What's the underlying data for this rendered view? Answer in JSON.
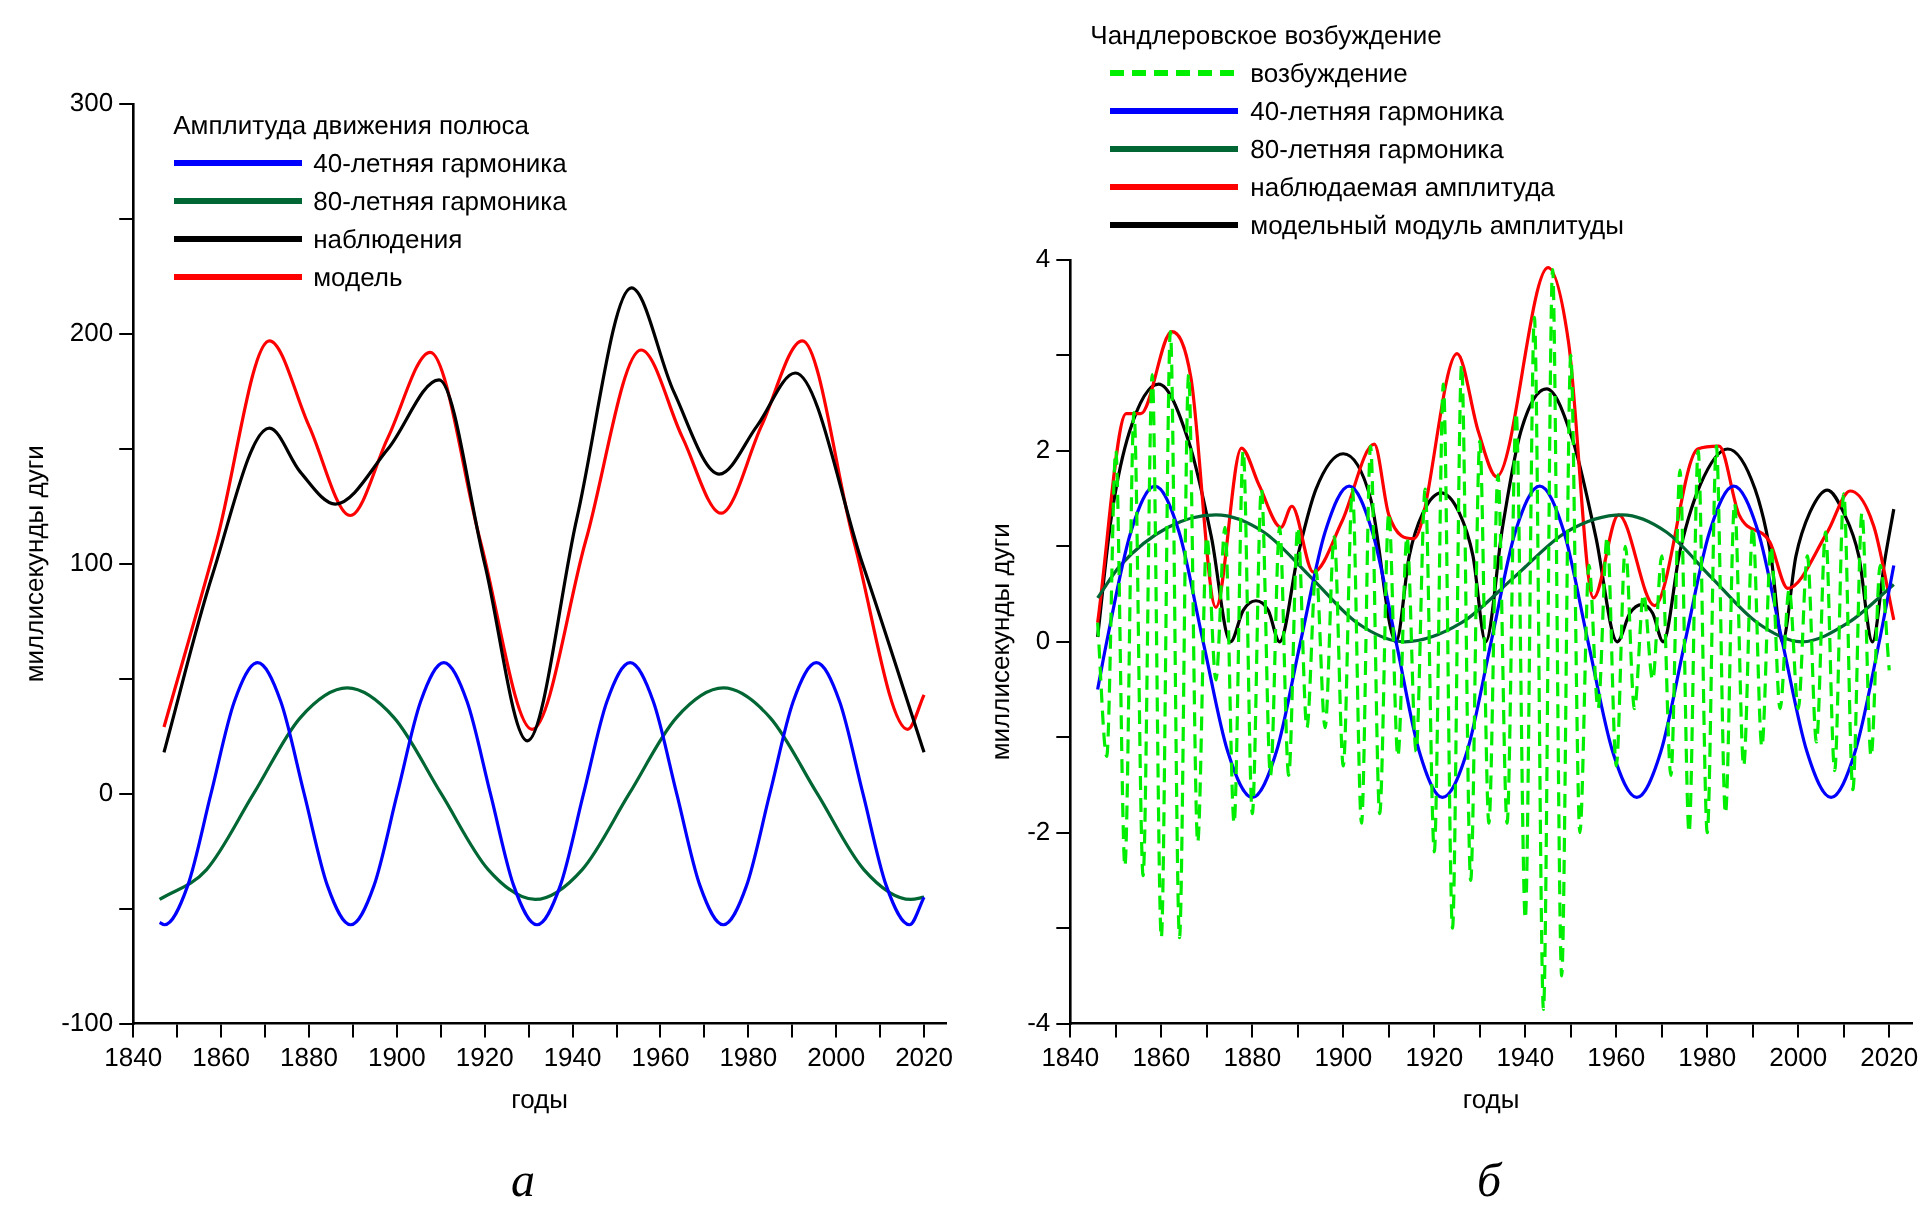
{
  "chart_data": [
    {
      "type": "line",
      "xlabel": "годы",
      "ylabel": "миллисекунды дуги",
      "legend_title": "Амплитуда движения полюса",
      "legend": "top left",
      "marker": "none",
      "annotations": [
        "а"
      ],
      "xlim": [
        1840,
        2025
      ],
      "xticks": [
        1840,
        {
          "value": 1850,
          "label": null
        },
        1860,
        {
          "value": 1870,
          "label": null
        },
        1880,
        {
          "value": 1890,
          "label": null
        },
        1900,
        {
          "value": 1910,
          "label": null
        },
        1920,
        {
          "value": 1930,
          "label": null
        },
        1940,
        {
          "value": 1950,
          "label": null
        },
        1960,
        {
          "value": 1970,
          "label": null
        },
        1980,
        {
          "value": 1990,
          "label": null
        },
        2000,
        {
          "value": 2010,
          "label": null
        },
        2020
      ],
      "ylim": [
        -100,
        300
      ],
      "yticks": [
        -100,
        {
          "value": -50,
          "label": null
        },
        0,
        {
          "value": 50,
          "label": null
        },
        100,
        {
          "value": 150,
          "label": null
        },
        200,
        {
          "value": 250,
          "label": null
        },
        300
      ],
      "series": [
        {
          "name": "40-летняя гармоника",
          "color": "#0000ff",
          "x": [
            1846,
            1847.1,
            1852.4,
            1857.7,
            1863,
            1868.3,
            1873.6,
            1878.9,
            1884.2,
            1889.5,
            1894.8,
            1900.1,
            1905.4,
            1910.7,
            1916,
            1921.3,
            1926.6,
            1931.9,
            1937.2,
            1942.5,
            1947.8,
            1953.1,
            1958.4,
            1963.7,
            1969,
            1974.3,
            1979.6,
            1984.9,
            1990.2,
            1995.5,
            2000.8,
            2006.1,
            2011.4,
            2016.7,
            2020
          ],
          "values": [
            -56,
            -57,
            -40,
            0,
            40,
            57,
            40,
            0,
            -40,
            -57,
            -40,
            0,
            40,
            57,
            40,
            0,
            -40,
            -57,
            -40,
            0,
            40,
            57,
            40,
            0,
            -40,
            -57,
            -40,
            0,
            40,
            57,
            40,
            0,
            -40,
            -57,
            -45
          ]
        },
        {
          "name": "80-летняя гармоника",
          "color": "#006633",
          "x": [
            1846,
            1856.7,
            1867.4,
            1878,
            1888.7,
            1899.4,
            1910.1,
            1920.8,
            1931.5,
            1942.2,
            1952.9,
            1963.6,
            1974.3,
            1985,
            1995.7,
            2006.3,
            2017,
            2020
          ],
          "values": [
            -46,
            -33,
            0,
            33,
            46,
            33,
            0,
            -33,
            -46,
            -33,
            0,
            33,
            46,
            33,
            0,
            -33,
            -46,
            -45
          ]
        },
        {
          "name": "наблюдения",
          "color": "#000000",
          "x": [
            1847,
            1858,
            1871,
            1878,
            1886,
            1898,
            1909.6,
            1920,
            1929.7,
            1941,
            1953.4,
            1963,
            1973.4,
            1982,
            1990.7,
            2006,
            2020
          ],
          "values": [
            18,
            95,
            159,
            140,
            126,
            150,
            180,
            100,
            23,
            120,
            220,
            175,
            139,
            160,
            183,
            100,
            18
          ]
        },
        {
          "name": "модель",
          "color": "#ff0000",
          "x": [
            1847,
            1859,
            1871,
            1880,
            1889.4,
            1898,
            1907.6,
            1919,
            1930.8,
            1943,
            1955.6,
            1965,
            1973.8,
            1983,
            1992.3,
            2004,
            2016.3,
            2020
          ],
          "values": [
            29,
            110,
            197,
            160,
            121,
            155,
            192,
            110,
            28,
            110,
            193,
            155,
            122,
            160,
            197,
            110,
            28,
            43
          ]
        }
      ]
    },
    {
      "type": "line",
      "xlabel": "годы",
      "ylabel": "миллисекунды дуги",
      "legend_title": "Чандлеровское возбуждение",
      "legend": "top",
      "marker": "none",
      "annotations": [
        "б"
      ],
      "xlim": [
        1840,
        2025
      ],
      "xticks": [
        1840,
        {
          "value": 1850,
          "label": null
        },
        1860,
        {
          "value": 1870,
          "label": null
        },
        1880,
        {
          "value": 1890,
          "label": null
        },
        1900,
        {
          "value": 1910,
          "label": null
        },
        1920,
        {
          "value": 1930,
          "label": null
        },
        1940,
        {
          "value": 1950,
          "label": null
        },
        1960,
        {
          "value": 1970,
          "label": null
        },
        1980,
        {
          "value": 1990,
          "label": null
        },
        2000,
        {
          "value": 2010,
          "label": null
        },
        2020
      ],
      "ylim": [
        -4,
        4
      ],
      "yticks": [
        -4,
        {
          "value": -3,
          "label": null
        },
        -2,
        {
          "value": -1,
          "label": null
        },
        0,
        {
          "value": 1,
          "label": null
        },
        2,
        {
          "value": 3,
          "label": null
        },
        4
      ],
      "series": [
        {
          "name": "возбуждение",
          "color": "#00ee00",
          "line_style": "dashed",
          "x": [
            1846,
            1848,
            1850,
            1852,
            1854,
            1856,
            1858,
            1860,
            1862,
            1864,
            1866,
            1868,
            1870,
            1872,
            1874,
            1876,
            1878,
            1880,
            1882,
            1884,
            1886,
            1888,
            1890,
            1892,
            1894,
            1896,
            1898,
            1900,
            1902,
            1904,
            1906,
            1908,
            1910,
            1912,
            1914,
            1916,
            1918,
            1920,
            1922,
            1924,
            1926,
            1928,
            1930,
            1932,
            1934,
            1936,
            1938,
            1940,
            1942,
            1944,
            1946,
            1948,
            1950,
            1952,
            1954,
            1956,
            1958,
            1960,
            1962,
            1964,
            1966,
            1968,
            1970,
            1972,
            1974,
            1976,
            1978,
            1980,
            1982,
            1984,
            1986,
            1988,
            1990,
            1992,
            1994,
            1996,
            1998,
            2000,
            2002,
            2004,
            2006,
            2008,
            2010,
            2012,
            2014,
            2016,
            2018,
            2020
          ],
          "values": [
            0.2,
            -1.2,
            2.0,
            -2.35,
            2.4,
            -2.45,
            2.8,
            -3.1,
            3.25,
            -3.1,
            2.8,
            -2.1,
            1.1,
            -0.4,
            1.2,
            -1.9,
            2.0,
            -1.8,
            1.6,
            -1.4,
            1.2,
            -1.4,
            1.2,
            -0.9,
            0.75,
            -0.9,
            1.1,
            -1.3,
            1.6,
            -1.9,
            2.05,
            -1.8,
            1.35,
            -1.2,
            1.1,
            -1.15,
            1.6,
            -2.2,
            2.7,
            -3.0,
            2.9,
            -2.5,
            2.1,
            -1.9,
            1.75,
            -1.9,
            2.4,
            -2.9,
            3.4,
            -3.85,
            3.9,
            -3.5,
            3.0,
            -2.0,
            0.8,
            -0.7,
            1.1,
            -1.3,
            1.0,
            -0.7,
            0.5,
            -0.4,
            0.9,
            -1.4,
            1.8,
            -2.0,
            2.0,
            -2.0,
            2.05,
            -1.8,
            1.45,
            -1.3,
            1.2,
            -1.1,
            1.0,
            -0.7,
            0.55,
            -0.7,
            0.9,
            -1.05,
            1.15,
            -1.35,
            1.55,
            -1.55,
            1.35,
            -1.2,
            0.8,
            -0.3
          ]
        },
        {
          "name": "40-летняя гармоника",
          "color": "#0000ff",
          "x": [
            1846,
            1848,
            1853.3,
            1858.6,
            1863.9,
            1869.2,
            1874.6,
            1880,
            1885.3,
            1890.6,
            1896,
            1901.3,
            1906.4,
            1911.6,
            1916.7,
            1921.8,
            1927.2,
            1932.5,
            1937.8,
            1943.2,
            1948.5,
            1953.8,
            1959.2,
            1964.5,
            1969.8,
            1975.1,
            1980.5,
            1985.8,
            1991.2,
            1996.5,
            2001.9,
            2007.2,
            2012.5,
            2017.8,
            2021
          ],
          "values": [
            -0.5,
            0,
            1.15,
            1.63,
            1.15,
            0,
            -1.15,
            -1.63,
            -1.15,
            0,
            1.15,
            1.63,
            1.15,
            0,
            -1.15,
            -1.63,
            -1.15,
            0,
            1.15,
            1.63,
            1.15,
            0,
            -1.15,
            -1.63,
            -1.15,
            0,
            1.15,
            1.63,
            1.15,
            0,
            -1.15,
            -1.63,
            -1.15,
            0,
            0.8
          ]
        },
        {
          "name": "80-летняя гармоника",
          "color": "#006633",
          "x": [
            1846,
            1851,
            1861.5,
            1872,
            1882.5,
            1893,
            1903,
            1913.5,
            1926,
            1937.4,
            1949,
            1961.3,
            1971,
            1981,
            1991,
            2000.8,
            2011,
            2021
          ],
          "values": [
            0.46,
            0.8,
            1.2,
            1.33,
            1.15,
            0.67,
            0.2,
            0,
            0.2,
            0.67,
            1.15,
            1.33,
            1.15,
            0.67,
            0.2,
            0,
            0.2,
            0.6
          ]
        },
        {
          "name": "наблюдаемая амплитуда",
          "color": "#ff0000",
          "x": [
            1846,
            1852.3,
            1855.5,
            1862.3,
            1866.5,
            1872,
            1877.6,
            1881.5,
            1886.3,
            1888.7,
            1893.4,
            1899.7,
            1906.8,
            1910,
            1915.5,
            1925,
            1929.7,
            1933.7,
            1945,
            1949.5,
            1955,
            1960.5,
            1968.4,
            1977.9,
            1982.6,
            1987,
            1993.7,
            1997.7,
            2006.4,
            2011.4,
            2016.6,
            2021
          ],
          "values": [
            0.2,
            2.39,
            2.39,
            3.25,
            2.77,
            0.36,
            2.03,
            1.64,
            1.2,
            1.42,
            0.73,
            1.26,
            2.07,
            1.33,
            1.08,
            3.02,
            2.2,
            1.73,
            3.92,
            3.14,
            0.46,
            1.33,
            0.38,
            2.02,
            2.05,
            1.33,
            1.05,
            0.56,
            1.15,
            1.58,
            1.21,
            0.23
          ]
        },
        {
          "name": "модельный модуль амплитуды",
          "color": "#000000",
          "x": [
            1846,
            1849,
            1853,
            1859.4,
            1866,
            1871,
            1875.2,
            1878,
            1880.8,
            1883.5,
            1886,
            1890,
            1894,
            1900,
            1906,
            1911.6,
            1914.5,
            1917.5,
            1921.5,
            1925.5,
            1928.5,
            1931.3,
            1935,
            1939,
            1944.7,
            1950.5,
            1955.5,
            1960.2,
            1963,
            1965.6,
            1968,
            1970.3,
            1974,
            1978.5,
            1984.5,
            1990.5,
            1994,
            1996.5,
            1999.5,
            2002.5,
            2006.4,
            2010,
            2013.3,
            2016.3,
            2019,
            2021
          ],
          "values": [
            0.05,
            1.3,
            2.2,
            2.7,
            2.1,
            1.1,
            0,
            0.33,
            0.43,
            0.33,
            0,
            0.9,
            1.6,
            1.97,
            1.5,
            0,
            0.9,
            1.35,
            1.56,
            1.35,
            0.9,
            0,
            1.2,
            2.2,
            2.65,
            2.1,
            1.1,
            0,
            0.3,
            0.39,
            0.3,
            0,
            0.95,
            1.65,
            2.02,
            1.6,
            0.9,
            0,
            0.9,
            1.35,
            1.59,
            1.35,
            0.9,
            0,
            0.85,
            1.39
          ]
        }
      ]
    }
  ]
}
